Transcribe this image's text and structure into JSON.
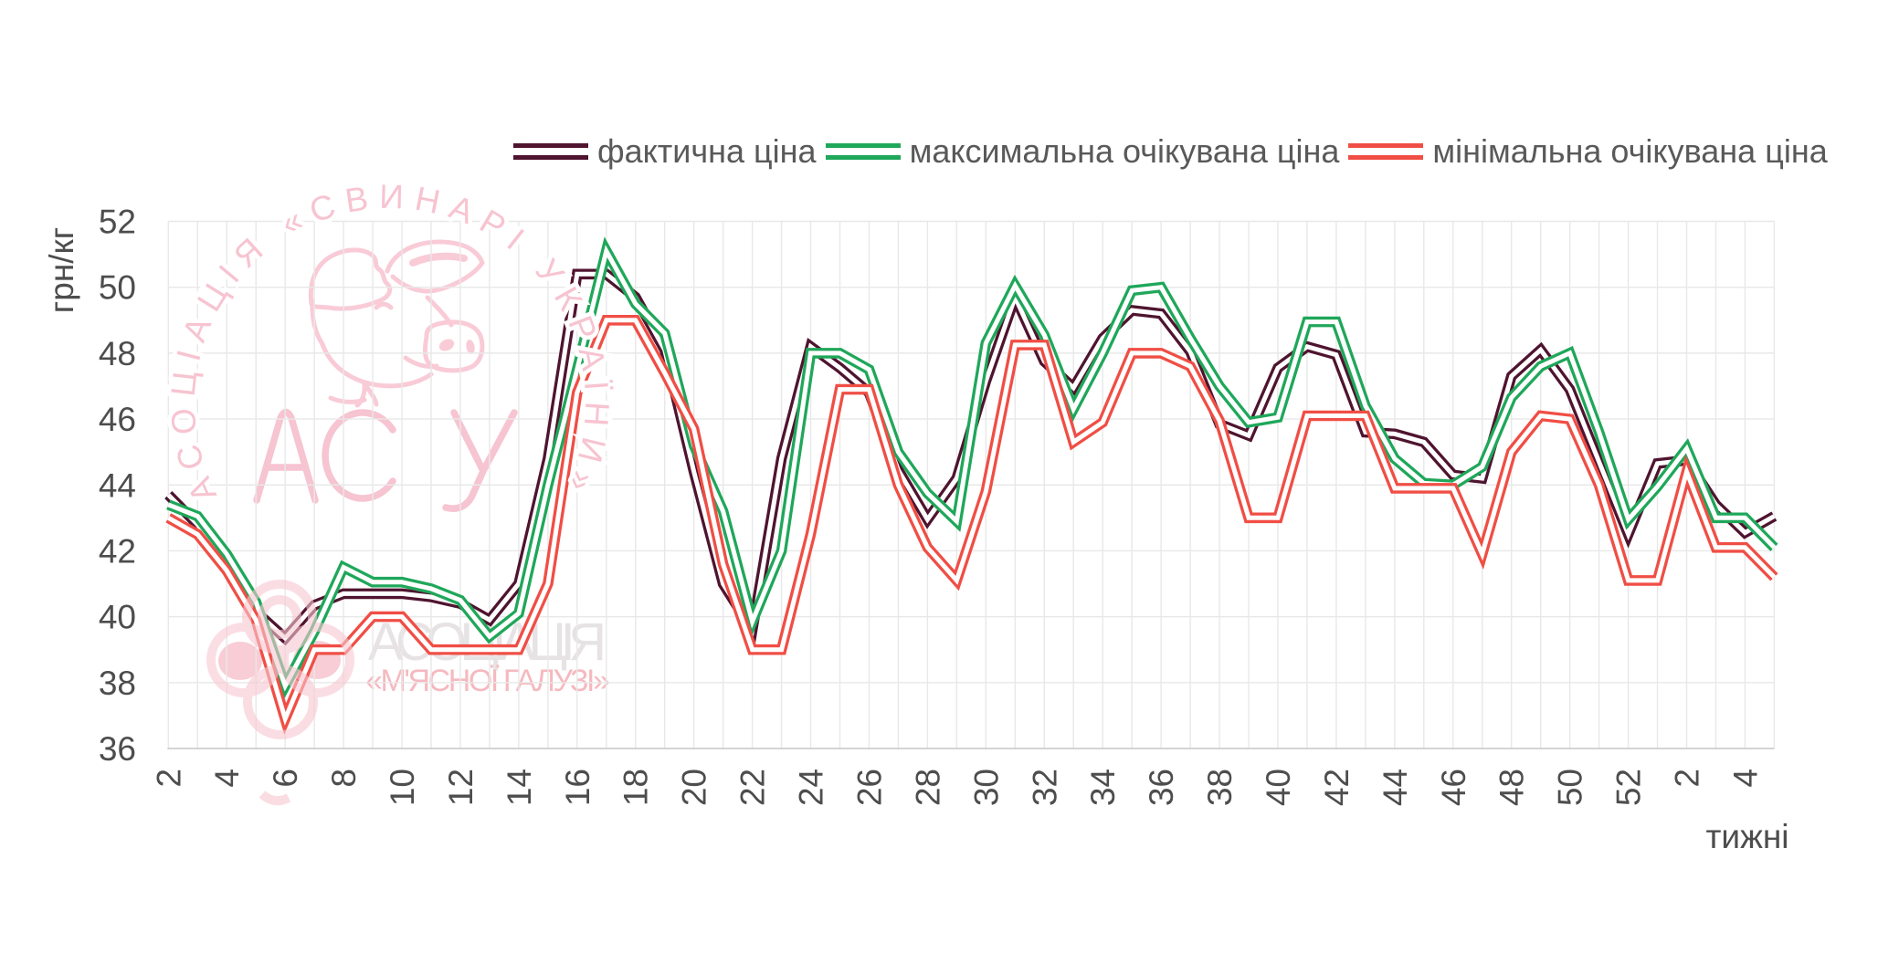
{
  "chart_data": {
    "type": "line",
    "title": "",
    "xlabel": "тижні",
    "ylabel": "грн/кг",
    "ylim": [
      36,
      52
    ],
    "ytick_step": 2,
    "yticks": [
      36,
      38,
      40,
      42,
      44,
      46,
      48,
      50,
      52
    ],
    "x_weeks": [
      2,
      3,
      4,
      5,
      6,
      7,
      8,
      9,
      10,
      11,
      12,
      13,
      14,
      15,
      16,
      17,
      18,
      19,
      20,
      21,
      22,
      23,
      24,
      25,
      26,
      27,
      28,
      29,
      30,
      31,
      32,
      33,
      34,
      35,
      36,
      37,
      38,
      39,
      40,
      41,
      42,
      43,
      44,
      45,
      46,
      47,
      48,
      49,
      50,
      51,
      52,
      1,
      2,
      3,
      4,
      5
    ],
    "xtick_every": 2,
    "grid": true,
    "legend_position": "top",
    "series": [
      {
        "name": "фактична ціна",
        "color": "#4F142F",
        "values": [
          43.7,
          42.8,
          41.6,
          40.15,
          39.35,
          40.35,
          40.7,
          40.7,
          40.7,
          40.6,
          40.4,
          39.9,
          41.0,
          44.8,
          50.4,
          50.4,
          49.7,
          48.1,
          44.4,
          41.0,
          39.6,
          44.8,
          48.2,
          47.55,
          46.8,
          44.45,
          42.95,
          44.2,
          47.15,
          49.7,
          47.75,
          46.95,
          48.45,
          49.3,
          49.2,
          48.05,
          45.85,
          45.5,
          47.55,
          48.2,
          47.95,
          45.6,
          45.55,
          45.3,
          44.3,
          44.2,
          47.3,
          48.1,
          46.9,
          44.7,
          42.5,
          44.65,
          44.75,
          43.4,
          42.55,
          43.05
        ]
      },
      {
        "name": "максимальна очікувана ціна",
        "color": "#1FA75A",
        "values": [
          43.4,
          43.05,
          41.9,
          40.45,
          37.9,
          39.55,
          41.5,
          41.05,
          41.05,
          40.85,
          40.5,
          39.4,
          40.1,
          44.0,
          47.5,
          51.1,
          49.5,
          48.6,
          45.2,
          43.2,
          39.85,
          42.0,
          48.0,
          48.0,
          47.5,
          45.0,
          43.75,
          42.9,
          48.3,
          50.05,
          48.55,
          46.3,
          48.0,
          49.9,
          50.0,
          48.45,
          47.0,
          45.9,
          46.05,
          48.95,
          48.95,
          46.4,
          44.8,
          44.05,
          44.0,
          44.55,
          46.65,
          47.6,
          48.0,
          45.6,
          42.95,
          43.95,
          45.1,
          43.0,
          43.0,
          42.1
        ]
      },
      {
        "name": "мінімальна очікувана ціна",
        "color": "#F04E45",
        "values": [
          43.0,
          42.5,
          41.4,
          39.9,
          36.9,
          39.0,
          39.0,
          40.0,
          40.0,
          39.0,
          39.0,
          39.0,
          39.0,
          41.0,
          46.8,
          49.0,
          49.0,
          47.4,
          45.7,
          41.6,
          39.0,
          39.0,
          42.5,
          46.9,
          46.9,
          44.0,
          42.1,
          41.1,
          43.8,
          48.25,
          48.25,
          45.3,
          45.9,
          48.0,
          48.0,
          47.6,
          45.95,
          43.0,
          43.0,
          46.1,
          46.1,
          46.1,
          43.9,
          43.9,
          43.9,
          41.9,
          45.0,
          46.1,
          46.0,
          44.0,
          41.1,
          41.1,
          44.4,
          42.1,
          42.1,
          41.2
        ]
      }
    ]
  },
  "watermarks": {
    "emblem": {
      "arc_text": "АСОЦІАЦІЯ «СВИНАРІ УКРАЇНИ»",
      "center_text": "АСУ",
      "color": "#F7C4D1"
    },
    "bottom": {
      "line1": "АСОЦІАЦІЯ",
      "line2": "«М'ЯСНОЇ ГАЛУЗІ»",
      "color1": "#E7E3E5",
      "color2": "#F5B9BF",
      "flower_color": "#F8C8D1"
    }
  },
  "style": {
    "grid_color": "#E8E8E8",
    "axis_line_color": "#C9C9C9",
    "tick_label_color": "#4D4D4D",
    "legend_text_color": "#595959",
    "background": "#FFFFFF"
  }
}
